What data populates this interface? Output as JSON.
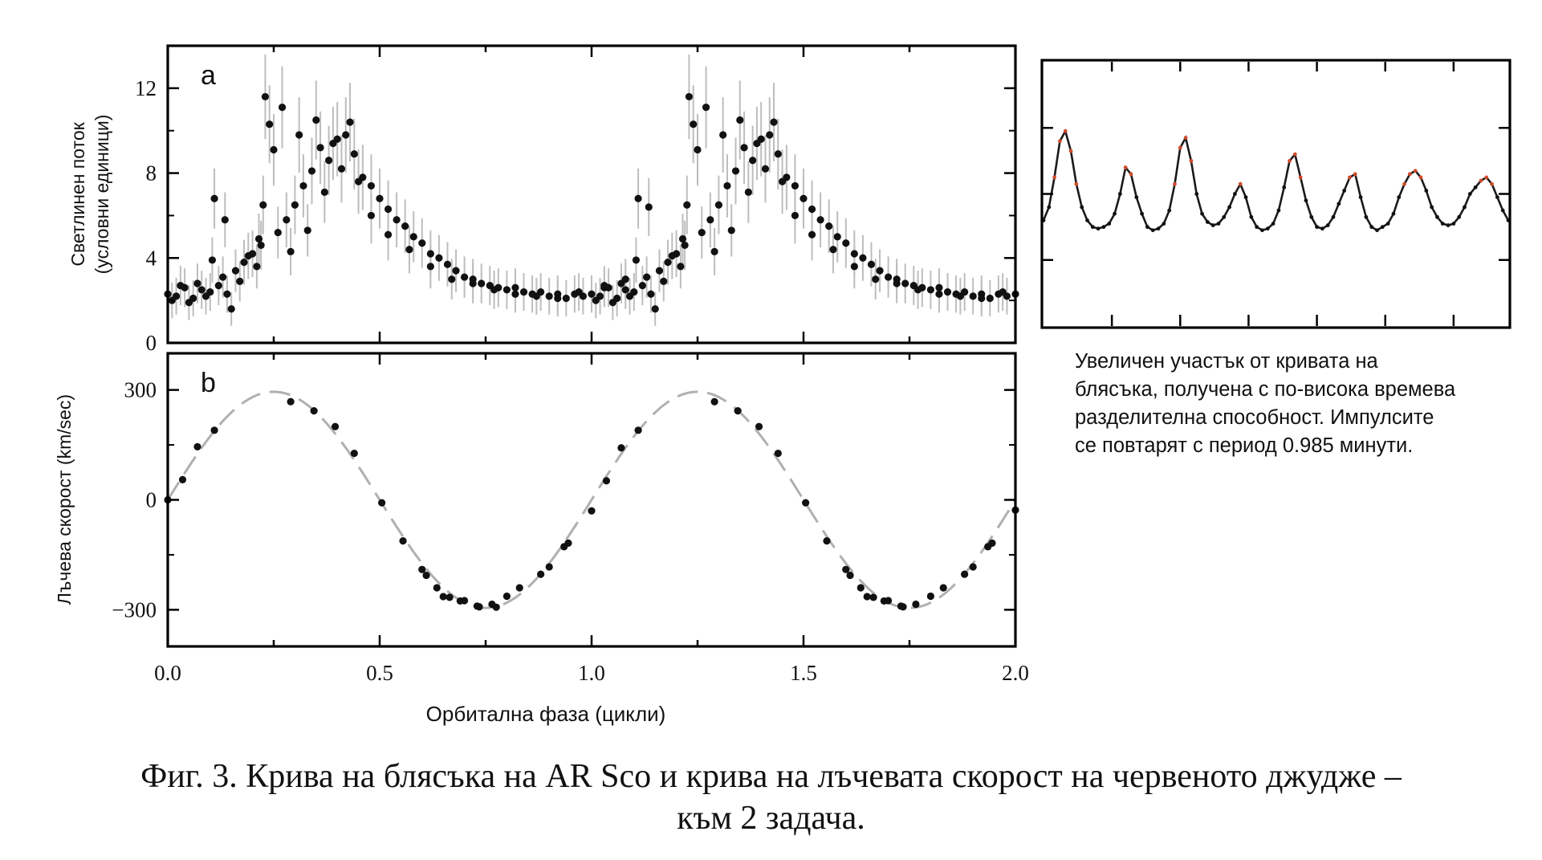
{
  "chart_data": [
    {
      "type": "scatter",
      "panel_label": "a",
      "ylabel_line1": "Светлинен поток",
      "ylabel_line2": "(условни единици)",
      "xlim": [
        0.0,
        2.0
      ],
      "ylim": [
        0,
        14
      ],
      "yticks": [
        0,
        4,
        8,
        12
      ],
      "ytick_labels": [
        "0",
        "4",
        "8",
        "12"
      ],
      "series": [
        {
          "error_bars": true,
          "x": [
            0.0,
            0.02,
            0.04,
            0.06,
            0.08,
            0.1,
            0.12,
            0.14,
            0.16,
            0.18,
            0.2,
            0.22,
            0.23,
            0.24,
            0.26,
            0.28,
            0.3,
            0.32,
            0.34,
            0.36,
            0.38,
            0.4,
            0.42,
            0.44,
            0.46,
            0.48,
            0.5,
            0.52,
            0.54,
            0.56,
            0.58,
            0.6,
            0.62,
            0.64,
            0.66,
            0.68,
            0.7,
            0.72,
            0.74,
            0.76,
            0.78,
            0.8,
            0.82,
            0.84,
            0.86,
            0.88,
            0.9,
            0.92,
            0.94,
            0.96,
            0.98,
            1.0,
            1.02,
            1.04,
            1.06,
            1.08,
            1.1,
            1.12,
            1.14,
            1.16,
            1.18,
            1.2,
            1.22,
            1.23,
            1.24,
            1.26,
            1.28,
            1.3,
            1.32,
            1.34,
            1.36,
            1.38,
            1.4,
            1.42,
            1.44,
            1.46,
            1.48,
            1.5,
            1.52,
            1.54,
            1.56,
            1.58,
            1.6,
            1.62,
            1.64,
            1.66,
            1.68,
            1.7,
            1.72,
            1.74,
            1.76,
            1.78,
            1.8,
            1.82,
            1.84,
            1.86,
            1.88,
            1.9,
            1.92,
            1.94,
            1.96,
            1.98,
            2.0,
            0.105,
            0.11,
            0.215,
            0.225,
            0.25,
            0.27,
            0.29,
            0.31,
            0.33,
            0.35,
            0.37,
            0.39,
            0.41,
            0.43,
            0.45,
            0.48,
            0.52,
            0.57,
            0.62,
            0.67,
            0.72,
            0.77,
            0.82,
            0.87,
            0.92,
            0.97,
            1.03,
            1.08,
            1.105,
            1.11,
            1.215,
            1.225,
            1.25,
            1.27,
            1.29,
            1.31,
            1.33,
            1.35,
            1.37,
            1.39,
            1.41,
            1.43,
            1.45,
            1.48,
            1.52,
            1.57,
            1.62,
            1.67,
            1.72,
            1.77,
            1.82,
            1.87,
            1.92,
            1.97,
            0.01,
            0.03,
            0.05,
            0.07,
            0.09,
            0.13,
            0.15,
            0.17,
            0.19,
            0.21,
            1.01,
            1.03,
            1.05,
            1.07,
            1.09,
            1.13,
            1.15,
            1.17,
            1.19,
            1.21,
            0.135,
            1.135
          ],
          "y": [
            2.3,
            2.2,
            2.6,
            2.1,
            2.5,
            2.4,
            2.7,
            2.3,
            3.4,
            3.8,
            4.2,
            4.6,
            11.6,
            10.3,
            5.2,
            5.8,
            6.5,
            7.4,
            8.1,
            9.2,
            8.6,
            9.6,
            9.8,
            8.9,
            7.8,
            7.4,
            6.8,
            6.3,
            5.8,
            5.5,
            5.0,
            4.7,
            4.2,
            4.0,
            3.7,
            3.4,
            3.1,
            3.0,
            2.8,
            2.7,
            2.6,
            2.5,
            2.6,
            2.4,
            2.3,
            2.4,
            2.2,
            2.3,
            2.1,
            2.3,
            2.2,
            2.3,
            2.2,
            2.6,
            2.1,
            2.5,
            2.4,
            2.7,
            2.3,
            3.4,
            3.8,
            4.2,
            4.6,
            11.6,
            10.3,
            5.2,
            5.8,
            6.5,
            7.4,
            8.1,
            9.2,
            8.6,
            9.6,
            9.8,
            8.9,
            7.8,
            7.4,
            6.8,
            6.3,
            5.8,
            5.5,
            5.0,
            4.7,
            4.2,
            4.0,
            3.7,
            3.4,
            3.1,
            3.0,
            2.8,
            2.7,
            2.6,
            2.5,
            2.6,
            2.4,
            2.3,
            2.4,
            2.2,
            2.3,
            2.1,
            2.3,
            2.2,
            2.3,
            3.9,
            6.8,
            4.9,
            6.5,
            9.1,
            11.1,
            4.3,
            9.8,
            5.3,
            10.5,
            7.1,
            9.4,
            8.2,
            10.4,
            7.6,
            6.0,
            5.1,
            4.4,
            3.6,
            3.0,
            2.8,
            2.5,
            2.3,
            2.2,
            2.1,
            2.4,
            2.6,
            3.0,
            3.9,
            6.8,
            4.9,
            6.5,
            9.1,
            11.1,
            4.3,
            9.8,
            5.3,
            10.5,
            7.1,
            9.4,
            8.2,
            10.4,
            7.6,
            6.0,
            5.1,
            4.4,
            3.6,
            3.0,
            2.8,
            2.5,
            2.3,
            2.2,
            2.1,
            2.4,
            2.0,
            2.7,
            1.9,
            2.8,
            2.2,
            3.1,
            1.6,
            2.9,
            4.1,
            3.6,
            2.0,
            2.7,
            1.9,
            2.8,
            2.2,
            3.1,
            1.6,
            2.9,
            4.1,
            3.6,
            5.8,
            6.4
          ]
        }
      ]
    },
    {
      "type": "scatter",
      "panel_label": "b",
      "ylabel": "Лъчева скорост (km/sec)",
      "xlabel": "Орбитална фаза (цикли)",
      "xlim": [
        0.0,
        2.0
      ],
      "ylim": [
        -400,
        400
      ],
      "yticks": [
        -300,
        0,
        300
      ],
      "ytick_labels": [
        "−300",
        "0",
        "300"
      ],
      "xticks": [
        0.0,
        0.5,
        1.0,
        1.5,
        2.0
      ],
      "xtick_labels": [
        "0.0",
        "0.5",
        "1.0",
        "1.5",
        "2.0"
      ],
      "fit": {
        "model": "sine",
        "amplitude": 295,
        "offset": 0
      },
      "series": [
        {
          "x": [
            0.0,
            0.035,
            0.07,
            0.11,
            0.29,
            0.345,
            0.395,
            0.44,
            0.505,
            0.555,
            0.6,
            0.61,
            0.635,
            0.65,
            0.665,
            0.69,
            0.7,
            0.73,
            0.735,
            0.765,
            0.8,
            0.83,
            0.88,
            0.9,
            0.935,
            0.945,
            1.0,
            1.035,
            1.07,
            1.11,
            1.29,
            1.345,
            1.395,
            1.44,
            1.505,
            1.555,
            1.6,
            1.61,
            1.635,
            1.65,
            1.665,
            1.69,
            1.7,
            1.73,
            1.735,
            1.765,
            1.8,
            1.83,
            1.88,
            1.9,
            1.935,
            1.945,
            2.0,
            0.775
          ],
          "y": [
            0,
            55,
            145,
            190,
            268,
            243,
            200,
            127,
            -8,
            -112,
            -190,
            -206,
            -240,
            -264,
            -266,
            -276,
            -275,
            -290,
            -292,
            -285,
            -263,
            -240,
            -203,
            -183,
            -128,
            -118,
            -30,
            52,
            142,
            190,
            268,
            243,
            200,
            127,
            -8,
            -112,
            -190,
            -206,
            -240,
            -264,
            -266,
            -276,
            -275,
            -290,
            -292,
            -285,
            -263,
            -240,
            -203,
            -183,
            -128,
            -118,
            -28,
            -293
          ]
        }
      ]
    },
    {
      "type": "line",
      "panel": "inset",
      "description_ticks": "unlabeled",
      "period_minutes": 0.985,
      "series": [
        {
          "x": [
            0.0,
            0.08,
            0.16,
            0.24,
            0.32,
            0.4,
            0.48,
            0.56,
            0.64,
            0.72,
            0.8,
            0.88,
            0.96,
            1.04,
            1.12,
            1.2,
            1.28,
            1.36,
            1.44,
            1.52,
            1.6,
            1.68,
            1.76,
            1.84,
            1.92,
            2.0,
            2.08,
            2.16,
            2.24,
            2.32,
            2.4,
            2.48,
            2.56,
            2.64,
            2.72,
            2.8,
            2.88,
            2.96,
            3.04,
            3.12,
            3.2,
            3.28,
            3.36,
            3.44,
            3.52,
            3.6,
            3.68,
            3.76,
            3.84,
            3.92,
            4.0,
            4.08,
            4.16,
            4.24,
            4.32,
            4.4,
            4.48,
            4.56,
            4.64,
            4.72,
            4.8,
            4.88,
            4.96,
            5.04,
            5.12,
            5.2,
            5.28,
            5.36,
            5.44,
            5.52,
            5.6,
            5.68,
            5.76,
            5.84,
            5.92,
            6.0,
            6.08,
            6.16,
            6.24,
            6.32,
            6.4,
            6.48,
            6.56,
            6.64,
            6.72,
            6.8
          ],
          "y": [
            3.2,
            3.6,
            4.5,
            5.6,
            5.9,
            5.3,
            4.3,
            3.6,
            3.2,
            3.0,
            2.95,
            3.0,
            3.1,
            3.4,
            4.0,
            4.8,
            4.6,
            3.9,
            3.4,
            3.0,
            2.9,
            2.95,
            3.1,
            3.5,
            4.3,
            5.4,
            5.7,
            5.0,
            4.0,
            3.4,
            3.15,
            3.05,
            3.1,
            3.3,
            3.6,
            4.0,
            4.3,
            3.9,
            3.3,
            3.0,
            2.9,
            2.95,
            3.1,
            3.5,
            4.2,
            5.0,
            5.2,
            4.5,
            3.8,
            3.3,
            3.0,
            2.95,
            3.05,
            3.3,
            3.7,
            4.1,
            4.5,
            4.6,
            3.9,
            3.3,
            3.0,
            2.9,
            3.0,
            3.1,
            3.4,
            3.9,
            4.3,
            4.6,
            4.7,
            4.5,
            4.1,
            3.6,
            3.3,
            3.1,
            3.05,
            3.1,
            3.3,
            3.6,
            4.0,
            4.2,
            4.4,
            4.5,
            4.3,
            3.9,
            3.5,
            3.2
          ]
        }
      ]
    }
  ],
  "inset_caption": [
    "Увеличен участък от кривата на",
    "блясъка, получена с по-висока времева",
    "разделителна способност. Импулсите",
    "се повтарят с период 0.985 минути."
  ],
  "figure_caption": [
    "Фиг. 3. Крива на блясъка на AR Sco и крива на лъчевата скорост на червеното джудже –",
    "към 2 задача."
  ],
  "colors": {
    "points": "#111111",
    "error_bars": "#bdbdbd",
    "fit_line": "#b0b0b0",
    "inset_line": "#1a1a1a",
    "inset_highlight": "#d04a2a",
    "frame": "#000000"
  }
}
